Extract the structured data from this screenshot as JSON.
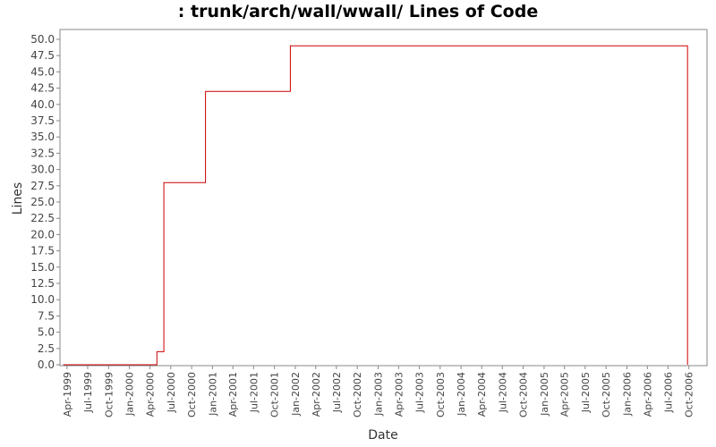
{
  "chart_data": {
    "type": "line",
    "title": ": trunk/arch/wall/wwall/ Lines of Code",
    "xlabel": "Date",
    "ylabel": "Lines",
    "ylim": [
      0,
      50
    ],
    "yticks": [
      "0.0",
      "2.5",
      "5.0",
      "7.5",
      "10.0",
      "12.5",
      "15.0",
      "17.5",
      "20.0",
      "22.5",
      "25.0",
      "27.5",
      "30.0",
      "32.5",
      "35.0",
      "37.5",
      "40.0",
      "42.5",
      "45.0",
      "47.5",
      "50.0"
    ],
    "xticks": [
      "Apr-1999",
      "Jul-1999",
      "Oct-1999",
      "Jan-2000",
      "Apr-2000",
      "Jul-2000",
      "Oct-2000",
      "Jan-2001",
      "Apr-2001",
      "Jul-2001",
      "Oct-2001",
      "Jan-2002",
      "Apr-2002",
      "Jul-2002",
      "Oct-2002",
      "Jan-2003",
      "Apr-2003",
      "Jul-2003",
      "Oct-2003",
      "Jan-2004",
      "Apr-2004",
      "Jul-2004",
      "Oct-2004",
      "Jan-2005",
      "Apr-2005",
      "Jul-2005",
      "Oct-2005",
      "Jan-2006",
      "Apr-2006",
      "Jul-2006",
      "Oct-2006"
    ],
    "grid": false,
    "line_color": "#cc0000",
    "series": [
      {
        "step": true,
        "points": [
          {
            "x": "1999-03-15",
            "y": 0
          },
          {
            "x": "2000-05-01",
            "y": 0
          },
          {
            "x": "2000-05-01",
            "y": 2
          },
          {
            "x": "2000-06-01",
            "y": 2
          },
          {
            "x": "2000-06-01",
            "y": 28
          },
          {
            "x": "2000-12-01",
            "y": 28
          },
          {
            "x": "2000-12-01",
            "y": 42
          },
          {
            "x": "2001-12-10",
            "y": 42
          },
          {
            "x": "2001-12-10",
            "y": 49
          },
          {
            "x": "2006-09-25",
            "y": 49
          },
          {
            "x": "2006-09-25",
            "y": 0
          }
        ]
      }
    ]
  }
}
